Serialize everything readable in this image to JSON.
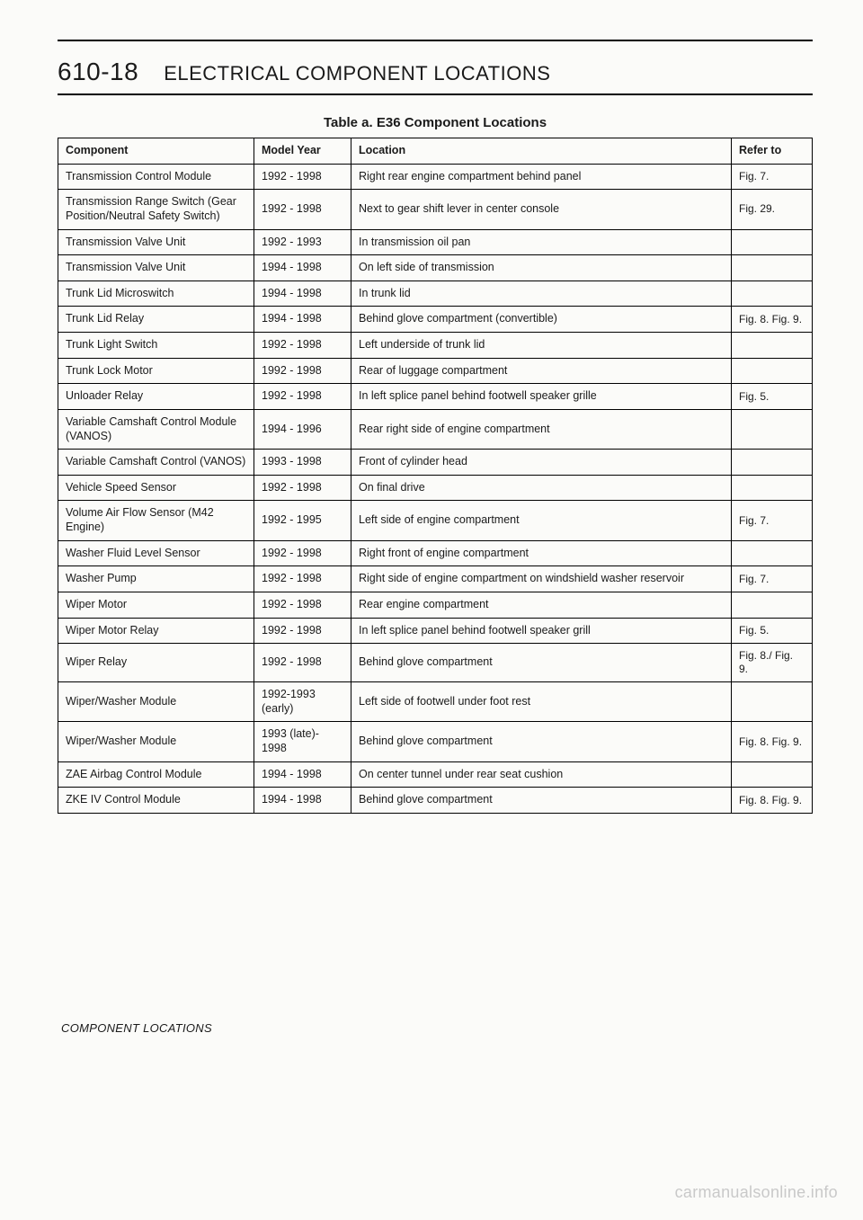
{
  "page_number": "610-18",
  "page_title": "ELECTRICAL COMPONENT LOCATIONS",
  "table": {
    "caption": "Table a. E36 Component Locations",
    "columns": [
      "Component",
      "Model Year",
      "Location",
      "Refer to"
    ],
    "rows": [
      [
        "Transmission Control Module",
        "1992 - 1998",
        "Right rear engine compartment behind panel",
        "Fig. 7."
      ],
      [
        "Transmission Range Switch (Gear Position/Neutral Safety Switch)",
        "1992 - 1998",
        "Next to gear shift lever in center console",
        "Fig. 29."
      ],
      [
        "Transmission Valve Unit",
        "1992 - 1993",
        "In transmission oil pan",
        ""
      ],
      [
        "Transmission Valve Unit",
        "1994 - 1998",
        "On left side of transmission",
        ""
      ],
      [
        "Trunk Lid Microswitch",
        "1994 - 1998",
        "In trunk lid",
        ""
      ],
      [
        "Trunk Lid Relay",
        "1994 - 1998",
        "Behind glove compartment (convertible)",
        "Fig. 8. Fig. 9."
      ],
      [
        "Trunk Light Switch",
        "1992 - 1998",
        "Left underside of trunk lid",
        ""
      ],
      [
        "Trunk Lock Motor",
        "1992 - 1998",
        "Rear of luggage compartment",
        ""
      ],
      [
        "Unloader Relay",
        "1992 - 1998",
        "In left splice panel behind footwell speaker grille",
        "Fig. 5."
      ],
      [
        "Variable Camshaft Control Module (VANOS)",
        "1994 - 1996",
        "Rear right side of engine compartment",
        ""
      ],
      [
        "Variable Camshaft Control (VANOS)",
        "1993 - 1998",
        "Front of cylinder head",
        ""
      ],
      [
        "Vehicle Speed Sensor",
        "1992 - 1998",
        "On final drive",
        ""
      ],
      [
        "Volume Air Flow Sensor (M42 Engine)",
        "1992 - 1995",
        "Left side of engine compartment",
        "Fig. 7."
      ],
      [
        "Washer Fluid Level Sensor",
        "1992 - 1998",
        "Right front of engine compartment",
        ""
      ],
      [
        "Washer Pump",
        "1992 - 1998",
        "Right side of engine compartment on windshield washer reservoir",
        "Fig. 7."
      ],
      [
        "Wiper Motor",
        "1992 - 1998",
        "Rear engine compartment",
        ""
      ],
      [
        "Wiper Motor Relay",
        "1992 - 1998",
        "In left splice panel behind footwell speaker grill",
        "Fig. 5."
      ],
      [
        "Wiper Relay",
        "1992 - 1998",
        "Behind glove compartment",
        "Fig. 8./ Fig. 9."
      ],
      [
        "Wiper/Washer Module",
        "1992-1993 (early)",
        "Left side of footwell under foot rest",
        ""
      ],
      [
        "Wiper/Washer Module",
        "1993 (late)- 1998",
        "Behind glove compartment",
        "Fig. 8. Fig. 9."
      ],
      [
        "ZAE Airbag Control Module",
        "1994 - 1998",
        "On center tunnel under rear seat cushion",
        ""
      ],
      [
        "ZKE IV Control Module",
        "1994 - 1998",
        "Behind glove compartment",
        "Fig. 8. Fig. 9."
      ]
    ]
  },
  "footer_label": "COMPONENT LOCATIONS",
  "watermark": "carmanualsonline.info"
}
